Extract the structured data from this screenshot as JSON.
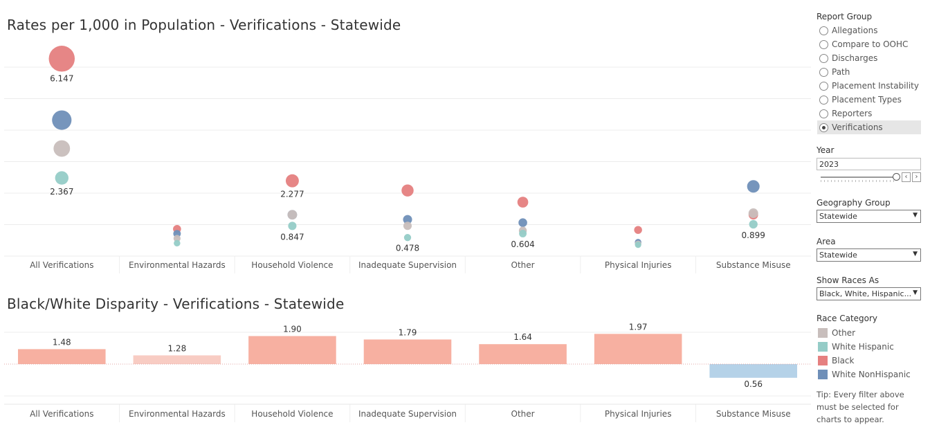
{
  "colors": {
    "other": "#c8bebc",
    "white_hispanic": "#95ccc7",
    "black": "#e58080",
    "white_nonhispanic": "#6f8fb8",
    "bar_pos": "#f7b0a1",
    "bar_pos_light": "#f8ccc3",
    "bar_neg": "#b5d2e8"
  },
  "chart_data": [
    {
      "type": "scatter",
      "title": "Rates per 1,000 in Population - Verifications - Statewide",
      "categories": [
        "All Verifications",
        "Environmental Hazards",
        "Household Violence",
        "Inadequate Supervision",
        "Other",
        "Physical Injuries",
        "Substance Misuse"
      ],
      "ylim": [
        0,
        6.8
      ],
      "series": [
        {
          "name": "Black",
          "color_key": "black",
          "values": [
            6.147,
            0.75,
            2.277,
            1.97,
            1.6,
            0.72,
            1.2
          ]
        },
        {
          "name": "White NonHispanic",
          "color_key": "white_nonhispanic",
          "values": [
            4.2,
            0.6,
            1.2,
            1.05,
            0.95,
            0.33,
            2.1
          ]
        },
        {
          "name": "Other",
          "color_key": "other",
          "values": [
            3.3,
            0.45,
            1.2,
            0.85,
            0.7,
            0.28,
            1.25
          ]
        },
        {
          "name": "White Hispanic",
          "color_key": "white_hispanic",
          "values": [
            2.367,
            0.3,
            0.847,
            0.478,
            0.604,
            0.25,
            0.899
          ]
        }
      ],
      "labels": [
        {
          "cat": 0,
          "value": 6.147,
          "text": "6.147"
        },
        {
          "cat": 0,
          "value": 2.367,
          "text": "2.367"
        },
        {
          "cat": 2,
          "value": 2.277,
          "text": "2.277"
        },
        {
          "cat": 2,
          "value": 0.847,
          "text": "0.847"
        },
        {
          "cat": 3,
          "value": 0.478,
          "text": "0.478"
        },
        {
          "cat": 4,
          "value": 0.604,
          "text": "0.604"
        },
        {
          "cat": 6,
          "value": 0.899,
          "text": "0.899"
        }
      ]
    },
    {
      "type": "bar",
      "title": "Black/White Disparity - Verifications -  Statewide",
      "categories": [
        "All Verifications",
        "Environmental Hazards",
        "Household Violence",
        "Inadequate Supervision",
        "Other",
        "Physical Injuries",
        "Substance Misuse"
      ],
      "values": [
        1.48,
        1.28,
        1.9,
        1.79,
        1.64,
        1.97,
        0.56
      ],
      "labels": [
        "1.48",
        "1.28",
        "1.90",
        "1.79",
        "1.64",
        "1.97",
        "0.56"
      ],
      "baseline": 1.0,
      "ylim": [
        0.0,
        2.2
      ]
    }
  ],
  "panel": {
    "report_group_label": "Report Group",
    "report_groups": [
      "Allegations",
      "Compare to OOHC",
      "Discharges",
      "Path",
      "Placement Instability",
      "Placement Types",
      "Reporters",
      "Verifications"
    ],
    "selected_report_group": "Verifications",
    "year_label": "Year",
    "year_value": "2023",
    "geography_label": "Geography Group",
    "geography_value": "Statewide",
    "area_label": "Area",
    "area_value": "Statewide",
    "show_races_label": "Show Races As",
    "show_races_value": "Black, White, Hispanic...",
    "race_category_label": "Race Category",
    "race_categories": [
      {
        "label": "Other",
        "color_key": "other"
      },
      {
        "label": "White Hispanic",
        "color_key": "white_hispanic"
      },
      {
        "label": "Black",
        "color_key": "black"
      },
      {
        "label": "White NonHispanic",
        "color_key": "white_nonhispanic"
      }
    ],
    "tip": "Tip: Every filter above must be selected for charts to appear."
  }
}
